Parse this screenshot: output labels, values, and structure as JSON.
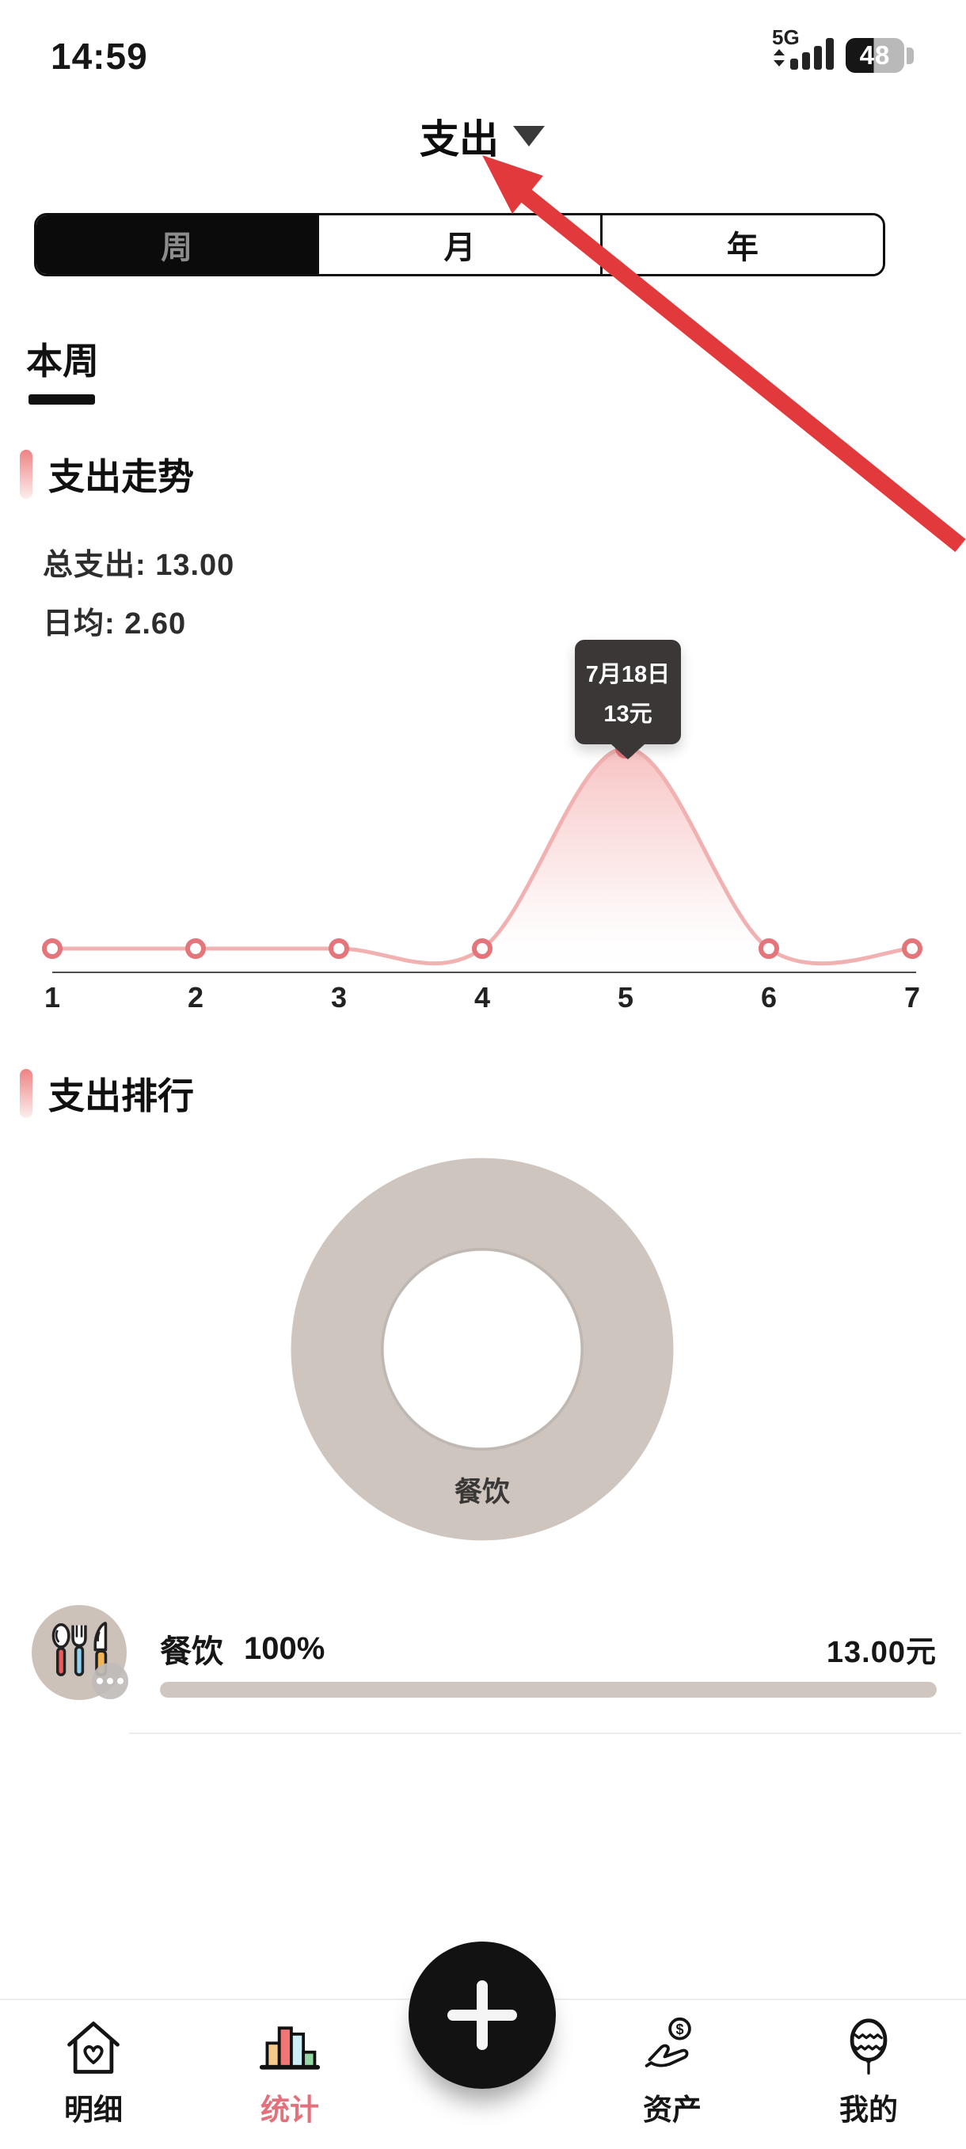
{
  "status_bar": {
    "time": "14:59",
    "network": "5G",
    "battery": "48"
  },
  "header": {
    "title": "支出"
  },
  "tabs": [
    {
      "label": "周",
      "active": true
    },
    {
      "label": "月",
      "active": false
    },
    {
      "label": "年",
      "active": false
    }
  ],
  "period_label": "本周",
  "trend": {
    "title": "支出走势",
    "total_label": "总支出:",
    "total_value": "13.00",
    "avg_label": "日均:",
    "avg_value": "2.60"
  },
  "chart_data": [
    {
      "type": "area",
      "title": "支出走势 (weekly expense trend)",
      "x": [
        1,
        2,
        3,
        4,
        5,
        6,
        7
      ],
      "values": [
        0,
        0,
        0,
        0,
        13,
        0,
        0
      ],
      "ylim": [
        0,
        13
      ],
      "grid": false,
      "tooltip": {
        "label": "7月18日",
        "value": "13元",
        "x": 5
      },
      "line_color": "#f1b1b1",
      "dot_color": "#e4757b",
      "fill_top": "#f6b5b5"
    },
    {
      "type": "pie",
      "donut": true,
      "labels": [
        "餐饮"
      ],
      "values": [
        100
      ],
      "colors": [
        "#cec5bf"
      ],
      "center_label": "餐饮"
    }
  ],
  "ranking": {
    "title": "支出排行",
    "items": [
      {
        "category": "餐饮",
        "percent": "100%",
        "amount": "13.00元",
        "progress": 100
      }
    ]
  },
  "nav": {
    "items": [
      {
        "label": "明细",
        "active": false
      },
      {
        "label": "统计",
        "active": true
      },
      {
        "label": "资产",
        "active": false
      },
      {
        "label": "我的",
        "active": false
      }
    ]
  },
  "icons": {
    "coin_symbol": "$"
  },
  "annotation_arrow": {
    "color": "#e23a3c"
  }
}
